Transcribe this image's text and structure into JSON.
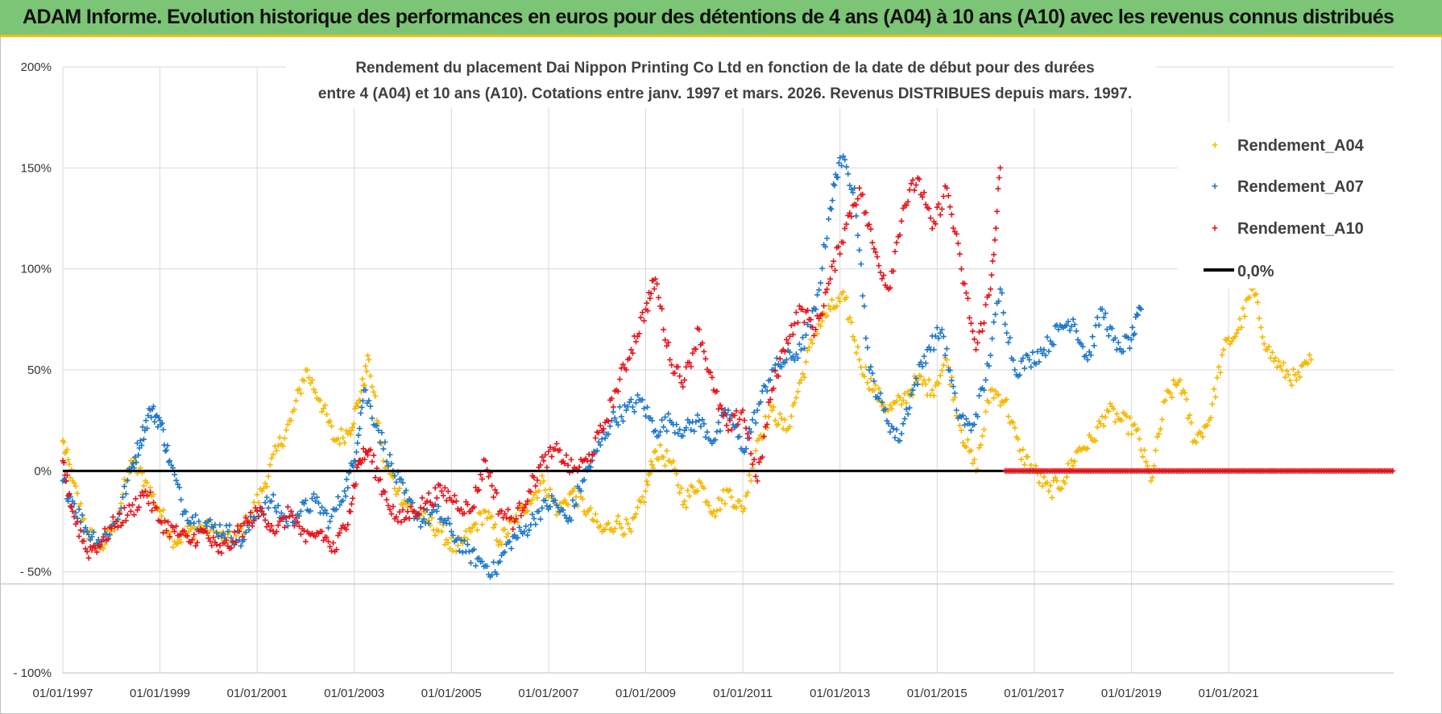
{
  "header": {
    "banner_title": "ADAM Informe. Evolution historique des performances en euros pour des détentions de 4 ans (A04) à 10 ans (A10) avec les revenus connus distribués"
  },
  "colors": {
    "banner_bg": "#7cc576",
    "banner_border": "#f2c300",
    "a04": "#f5b800",
    "a07": "#1f78c8",
    "a10": "#e8141c",
    "zero": "#000000",
    "grid": "#d9d9d9"
  },
  "chart_data": {
    "type": "scatter",
    "title_line1": "Rendement du placement Dai Nippon Printing Co Ltd en fonction de la date de début pour des durées",
    "title_line2": "entre 4 (A04) et 10 ans (A10).  Cotations entre janv. 1997 et mars. 2026. Revenus DISTRIBUES depuis mars. 1997.",
    "ylim": [
      -100,
      200
    ],
    "xlim": [
      1997.0,
      2024.4
    ],
    "y_ticks": [
      {
        "value": 200,
        "label": "200%"
      },
      {
        "value": 150,
        "label": "150%"
      },
      {
        "value": 100,
        "label": "100%"
      },
      {
        "value": 50,
        "label": "50%"
      },
      {
        "value": 0,
        "label": "0%"
      },
      {
        "value": -50,
        "label": "- 50%"
      },
      {
        "value": -100,
        "label": "- 100%"
      }
    ],
    "x_ticks": [
      {
        "value": 1997,
        "label": "01/01/1997"
      },
      {
        "value": 1999,
        "label": "01/01/1999"
      },
      {
        "value": 2001,
        "label": "01/01/2001"
      },
      {
        "value": 2003,
        "label": "01/01/2003"
      },
      {
        "value": 2005,
        "label": "01/01/2005"
      },
      {
        "value": 2007,
        "label": "01/01/2007"
      },
      {
        "value": 2009,
        "label": "01/01/2009"
      },
      {
        "value": 2011,
        "label": "01/01/2011"
      },
      {
        "value": 2013,
        "label": "01/01/2013"
      },
      {
        "value": 2015,
        "label": "01/01/2015"
      },
      {
        "value": 2017,
        "label": "01/01/2017"
      },
      {
        "value": 2019,
        "label": "01/01/2019"
      },
      {
        "value": 2021,
        "label": "01/01/2021"
      }
    ],
    "legend": [
      {
        "name": "Rendement_A04",
        "color": "#f5b800",
        "marker": "plus"
      },
      {
        "name": "Rendement_A07",
        "color": "#1f78c8",
        "marker": "plus"
      },
      {
        "name": "Rendement_A10",
        "color": "#e8141c",
        "marker": "plus"
      },
      {
        "name": "0,0%",
        "color": "#000000",
        "marker": "line"
      }
    ],
    "series": [
      {
        "name": "Rendement_A04",
        "x": [
          1997.0,
          1997.2,
          1997.5,
          1997.8,
          1998.1,
          1998.4,
          1998.7,
          1999.0,
          1999.3,
          1999.6,
          1999.9,
          2000.2,
          2000.5,
          2000.8,
          2001.1,
          2001.4,
          2001.7,
          2002.0,
          2002.3,
          2002.6,
          2002.9,
          2003.1,
          2003.3,
          2003.6,
          2003.9,
          2004.2,
          2004.5,
          2004.8,
          2005.1,
          2005.4,
          2005.7,
          2006.0,
          2006.3,
          2006.6,
          2006.9,
          2007.2,
          2007.5,
          2007.8,
          2008.1,
          2008.4,
          2008.7,
          2009.0,
          2009.2,
          2009.5,
          2009.8,
          2010.1,
          2010.4,
          2010.7,
          2011.0,
          2011.3,
          2011.6,
          2011.9,
          2012.2,
          2012.5,
          2012.8,
          2013.1,
          2013.4,
          2013.7,
          2014.0,
          2014.3,
          2014.6,
          2014.9,
          2015.2,
          2015.5,
          2015.8,
          2016.1,
          2016.4,
          2016.7,
          2017.0,
          2017.3,
          2017.6,
          2017.9,
          2018.2,
          2018.5,
          2018.8,
          2019.1,
          2019.4,
          2019.7,
          2020.0,
          2020.3,
          2020.6,
          2020.9,
          2021.2,
          2021.5,
          2021.8,
          2022.1,
          2022.4,
          2022.7
        ],
        "y": [
          15,
          -5,
          -30,
          -38,
          -25,
          5,
          -5,
          -20,
          -35,
          -30,
          -28,
          -32,
          -35,
          -25,
          -10,
          10,
          25,
          50,
          35,
          15,
          20,
          35,
          55,
          5,
          -10,
          -20,
          -25,
          -30,
          -40,
          -30,
          -20,
          -35,
          -25,
          -15,
          -5,
          -20,
          -10,
          -20,
          -30,
          -25,
          -30,
          -10,
          10,
          5,
          -15,
          -5,
          -20,
          -10,
          -20,
          15,
          30,
          20,
          45,
          70,
          80,
          85,
          55,
          40,
          30,
          35,
          45,
          40,
          55,
          20,
          0,
          40,
          35,
          10,
          0,
          -10,
          -5,
          10,
          15,
          30,
          25,
          20,
          -5,
          35,
          45,
          15,
          25,
          60,
          70,
          90,
          60,
          50,
          45,
          55
        ]
      },
      {
        "name": "Rendement_A07",
        "x": [
          1997.0,
          1997.2,
          1997.5,
          1997.8,
          1998.1,
          1998.4,
          1998.6,
          1998.8,
          1999.0,
          1999.2,
          1999.5,
          1999.8,
          2000.1,
          2000.4,
          2000.7,
          2001.0,
          2001.3,
          2001.6,
          2001.9,
          2002.2,
          2002.5,
          2002.8,
          2003.0,
          2003.2,
          2003.5,
          2003.8,
          2004.1,
          2004.4,
          2004.7,
          2005.0,
          2005.3,
          2005.6,
          2005.9,
          2006.2,
          2006.5,
          2006.8,
          2007.1,
          2007.4,
          2007.7,
          2008.0,
          2008.3,
          2008.6,
          2008.9,
          2009.2,
          2009.5,
          2009.8,
          2010.1,
          2010.4,
          2010.7,
          2011.0,
          2011.3,
          2011.6,
          2011.9,
          2012.2,
          2012.5,
          2012.8,
          2013.0,
          2013.3,
          2013.6,
          2013.9,
          2014.2,
          2014.5,
          2014.8,
          2015.1,
          2015.4,
          2015.7,
          2016.0,
          2016.3,
          2016.6,
          2016.9,
          2017.2,
          2017.5,
          2017.8,
          2018.1,
          2018.4,
          2018.7,
          2019.0,
          2019.2
        ],
        "y": [
          -5,
          -15,
          -30,
          -35,
          -25,
          0,
          15,
          30,
          25,
          5,
          -20,
          -25,
          -28,
          -30,
          -35,
          -20,
          -15,
          -25,
          -20,
          -15,
          -25,
          -10,
          5,
          40,
          20,
          0,
          -15,
          -25,
          -20,
          -30,
          -40,
          -45,
          -50,
          -35,
          -30,
          -20,
          -15,
          -25,
          -5,
          10,
          25,
          30,
          35,
          20,
          25,
          20,
          25,
          15,
          30,
          10,
          30,
          50,
          55,
          60,
          80,
          130,
          155,
          140,
          50,
          30,
          15,
          40,
          60,
          70,
          30,
          20,
          45,
          90,
          50,
          55,
          60,
          70,
          75,
          55,
          80,
          60,
          65,
          80
        ]
      },
      {
        "name": "Rendement_A10",
        "x": [
          1997.0,
          1997.2,
          1997.5,
          1997.8,
          1998.1,
          1998.4,
          1998.7,
          1999.0,
          1999.3,
          1999.6,
          1999.9,
          2000.2,
          2000.5,
          2000.8,
          2001.1,
          2001.4,
          2001.7,
          2002.0,
          2002.3,
          2002.6,
          2002.9,
          2003.1,
          2003.3,
          2003.6,
          2003.9,
          2004.2,
          2004.5,
          2004.8,
          2005.1,
          2005.4,
          2005.7,
          2006.0,
          2006.3,
          2006.6,
          2006.9,
          2007.2,
          2007.5,
          2007.8,
          2008.1,
          2008.4,
          2008.7,
          2009.0,
          2009.2,
          2009.5,
          2009.8,
          2010.1,
          2010.4,
          2010.7,
          2011.0,
          2011.3,
          2011.6,
          2011.9,
          2012.2,
          2012.5,
          2012.8,
          2013.1,
          2013.4,
          2013.7,
          2014.0,
          2014.3,
          2014.6,
          2014.9,
          2015.2,
          2015.5,
          2015.8,
          2016.1,
          2016.3
        ],
        "y": [
          5,
          -20,
          -40,
          -35,
          -25,
          -20,
          -10,
          -25,
          -30,
          -35,
          -30,
          -40,
          -35,
          -25,
          -20,
          -30,
          -20,
          -35,
          -30,
          -40,
          -20,
          5,
          10,
          -10,
          -25,
          -20,
          -15,
          -10,
          -15,
          -20,
          5,
          -20,
          -25,
          -10,
          5,
          10,
          0,
          5,
          20,
          40,
          60,
          80,
          95,
          55,
          45,
          70,
          40,
          20,
          30,
          -5,
          40,
          65,
          80,
          70,
          95,
          120,
          140,
          110,
          90,
          130,
          145,
          120,
          140,
          100,
          60,
          90,
          150
        ]
      }
    ],
    "zero_series": {
      "name": "0,0%",
      "value": 0,
      "x_start": 1997.0,
      "x_end": 2024.4
    },
    "a10_zero_tail": {
      "x_start": 2016.4,
      "x_end": 2024.4,
      "value": 0
    }
  }
}
